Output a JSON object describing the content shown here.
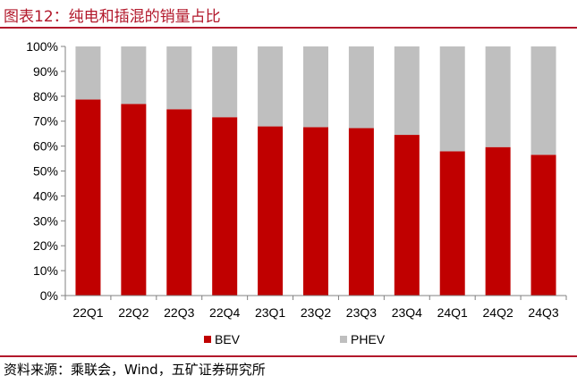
{
  "header": {
    "title": "图表12：纯电和插混的销量占比"
  },
  "footer": {
    "source": "资料来源：乘联会，Wind，五矿证券研究所"
  },
  "colors": {
    "accent": "#b2182b",
    "bev": "#c00000",
    "phev": "#bfbfbf",
    "axis": "#808080"
  },
  "chart_data": {
    "type": "bar",
    "stacked": true,
    "categories": [
      "22Q1",
      "22Q2",
      "22Q3",
      "22Q4",
      "23Q1",
      "23Q2",
      "23Q3",
      "23Q4",
      "24Q1",
      "24Q2",
      "24Q3"
    ],
    "series": [
      {
        "name": "BEV",
        "values": [
          78.7,
          76.9,
          74.8,
          71.6,
          67.9,
          67.6,
          67.2,
          64.5,
          57.9,
          59.6,
          56.5
        ]
      },
      {
        "name": "PHEV",
        "values": [
          21.3,
          23.1,
          25.2,
          28.4,
          32.1,
          32.4,
          32.8,
          35.5,
          42.1,
          40.4,
          43.5
        ]
      }
    ],
    "ylim": [
      0,
      100
    ],
    "y_ticks": [
      "0%",
      "10%",
      "20%",
      "30%",
      "40%",
      "50%",
      "60%",
      "70%",
      "80%",
      "90%",
      "100%"
    ],
    "legend": {
      "placement": "bottom"
    },
    "grid": false
  }
}
